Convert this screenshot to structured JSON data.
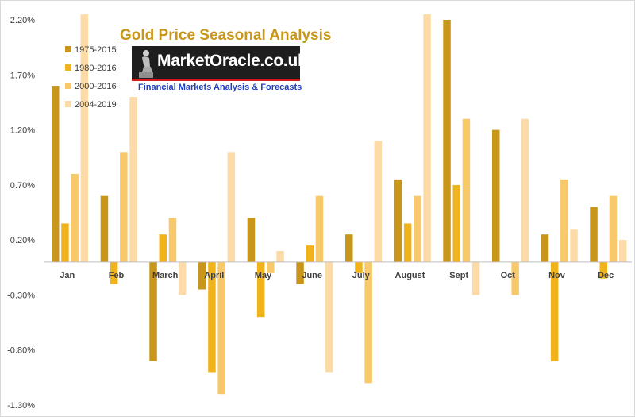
{
  "logo": {
    "text": "MarketOracle.co.uk",
    "tagline": "Financial Markets Analysis & Forecasts"
  },
  "colors": {
    "series": [
      "#c8961b",
      "#f0b31b",
      "#f7c96a",
      "#fcdba8"
    ],
    "title": "#c8961b",
    "axis_text": "#404040",
    "gridline": "#d9d9d9"
  },
  "chart_data": {
    "type": "bar",
    "title": "Gold Price Seasonal Analysis",
    "xlabel": "",
    "ylabel": "",
    "categories": [
      "Jan",
      "Feb",
      "March",
      "April",
      "May",
      "June",
      "July",
      "August",
      "Sept",
      "Oct",
      "Nov",
      "Dec"
    ],
    "series": [
      {
        "name": "1975-2015",
        "values": [
          1.6,
          0.6,
          -0.9,
          -0.25,
          0.4,
          -0.2,
          0.25,
          0.75,
          2.2,
          1.2,
          0.25,
          0.5
        ]
      },
      {
        "name": "1980-2016",
        "values": [
          0.35,
          -0.2,
          0.25,
          -1.0,
          -0.5,
          0.15,
          -0.1,
          0.35,
          0.7,
          0.0,
          -0.9,
          -0.15
        ]
      },
      {
        "name": "2000-2016",
        "values": [
          0.8,
          1.0,
          0.4,
          -1.2,
          -0.1,
          0.6,
          -1.1,
          0.6,
          1.3,
          -0.3,
          0.75,
          0.6
        ]
      },
      {
        "name": "2004-2019",
        "values": [
          2.25,
          1.5,
          -0.3,
          1.0,
          0.1,
          -1.0,
          1.1,
          2.25,
          -0.3,
          1.3,
          0.3,
          0.2
        ]
      }
    ],
    "ylim": [
      -1.3,
      2.2
    ],
    "yticks": [
      -1.3,
      -0.8,
      -0.3,
      0.2,
      0.7,
      1.2,
      1.7,
      2.2
    ],
    "ytick_labels": [
      "-1.30%",
      "-0.80%",
      "-0.30%",
      "0.20%",
      "0.70%",
      "1.20%",
      "1.70%",
      "2.20%"
    ],
    "grid": false,
    "legend_position": "top-left"
  }
}
